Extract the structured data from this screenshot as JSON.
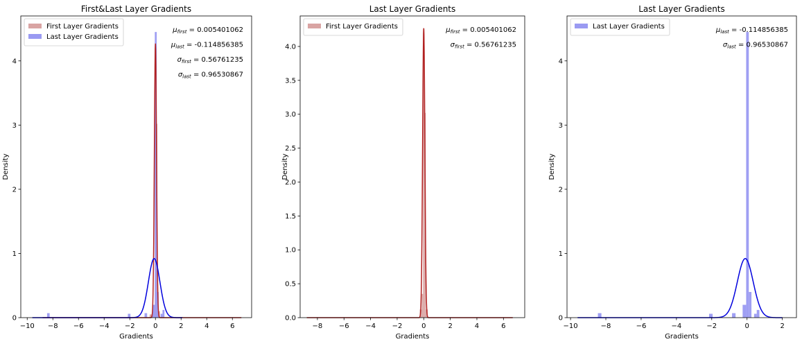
{
  "chart_data": [
    {
      "type": "histogram+kde",
      "title": "First&Last Layer Gradients",
      "xlabel": "Gradients",
      "ylabel": "Density",
      "xlim": [
        -10.5,
        7.5
      ],
      "ylim": [
        0,
        4.7
      ],
      "xticks": [
        -10,
        -8,
        -6,
        -4,
        -2,
        0,
        2,
        4,
        6
      ],
      "yticks": [
        0,
        1,
        2,
        3,
        4
      ],
      "legend_position": "upper-left",
      "legend": [
        {
          "label": "First Layer Gradients",
          "color": "#d9a4a3"
        },
        {
          "label": "Last Layer Gradients",
          "color": "#9a9af2"
        }
      ],
      "annotations": [
        {
          "sym": "μ",
          "sub": "first",
          "value": " = 0.005401062"
        },
        {
          "sym": "μ",
          "sub": "last",
          "value": " = -0.114856385"
        },
        {
          "sym": "σ",
          "sub": "first",
          "value": " = 0.56761235"
        },
        {
          "sym": "σ",
          "sub": "last",
          "value": " = 0.96530867"
        }
      ],
      "series": [
        {
          "name": "First Layer Gradients",
          "bar_color": "#d9a4a3",
          "line_color": "#b22222",
          "bins": [
            {
              "x0": -0.45,
              "x1": -0.2,
              "y": 0.05
            },
            {
              "x0": -0.2,
              "x1": -0.05,
              "y": 0.2
            },
            {
              "x0": -0.05,
              "x1": 0.05,
              "y": 4.25
            },
            {
              "x0": 0.05,
              "x1": 0.15,
              "y": 3.02
            },
            {
              "x0": 0.15,
              "x1": 0.35,
              "y": 0.1
            }
          ],
          "kde": {
            "mu": 0.0,
            "sigma": 0.085,
            "peak": 4.27
          }
        },
        {
          "name": "Last Layer Gradients",
          "bar_color": "#9a9af2",
          "line_color": "#0000dd",
          "bins": [
            {
              "x0": -8.45,
              "x1": -8.25,
              "y": 0.07
            },
            {
              "x0": -2.15,
              "x1": -1.95,
              "y": 0.06
            },
            {
              "x0": -0.85,
              "x1": -0.65,
              "y": 0.07
            },
            {
              "x0": -0.25,
              "x1": -0.05,
              "y": 0.2
            },
            {
              "x0": -0.05,
              "x1": 0.1,
              "y": 4.45
            },
            {
              "x0": 0.1,
              "x1": 0.25,
              "y": 0.4
            },
            {
              "x0": 0.4,
              "x1": 0.55,
              "y": 0.06
            },
            {
              "x0": 0.55,
              "x1": 0.7,
              "y": 0.12
            }
          ],
          "kde": {
            "mu": -0.1,
            "sigma": 0.45,
            "peak": 0.92
          },
          "kde_extent": [
            -9.6,
            2.1
          ]
        }
      ],
      "first_kde_extent": [
        -8.8,
        6.7
      ]
    },
    {
      "type": "histogram+kde",
      "title": "Last Layer Gradients",
      "xlabel": "Gradients",
      "ylabel": "Density",
      "xlim": [
        -9.3,
        7.6
      ],
      "ylim": [
        0,
        4.45
      ],
      "xticks": [
        -8,
        -6,
        -4,
        -2,
        0,
        2,
        4,
        6
      ],
      "yticks": [
        0,
        0.5,
        1.0,
        1.5,
        2.0,
        2.5,
        3.0,
        3.5,
        4.0
      ],
      "ytick_labels": [
        "0.0",
        "0.5",
        "1.0",
        "1.5",
        "2.0",
        "2.5",
        "3.0",
        "3.5",
        "4.0"
      ],
      "legend_position": "upper-left",
      "legend": [
        {
          "label": "First Layer Gradients",
          "color": "#d9a4a3"
        }
      ],
      "annotations": [
        {
          "sym": "μ",
          "sub": "first",
          "value": " = 0.005401062"
        },
        {
          "sym": "σ",
          "sub": "first",
          "value": " = 0.56761235"
        }
      ],
      "series": [
        {
          "name": "First Layer Gradients",
          "bar_color": "#d9a4a3",
          "line_color": "#b22222",
          "bins": [
            {
              "x0": -0.3,
              "x1": -0.15,
              "y": 0.12
            },
            {
              "x0": -0.15,
              "x1": -0.05,
              "y": 0.35
            },
            {
              "x0": -0.05,
              "x1": 0.05,
              "y": 4.26
            },
            {
              "x0": 0.05,
              "x1": 0.15,
              "y": 3.02
            },
            {
              "x0": 0.15,
              "x1": 0.3,
              "y": 0.12
            }
          ],
          "kde": {
            "mu": 0.0,
            "sigma": 0.085,
            "peak": 4.27
          },
          "kde_extent": [
            -8.8,
            6.7
          ]
        }
      ]
    },
    {
      "type": "histogram+kde",
      "title": "Last Layer Gradients",
      "xlabel": "Gradients",
      "ylabel": "Density",
      "xlim": [
        -10.2,
        2.8
      ],
      "ylim": [
        0,
        4.7
      ],
      "xticks": [
        -10,
        -8,
        -6,
        -4,
        -2,
        0,
        2
      ],
      "yticks": [
        0,
        1,
        2,
        3,
        4
      ],
      "legend_position": "upper-left",
      "legend": [
        {
          "label": "Last Layer Gradients",
          "color": "#9a9af2"
        }
      ],
      "annotations": [
        {
          "sym": "μ",
          "sub": "last",
          "value": " = -0.114856385"
        },
        {
          "sym": "σ",
          "sub": "last",
          "value": " = 0.96530867"
        }
      ],
      "series": [
        {
          "name": "Last Layer Gradients",
          "bar_color": "#9a9af2",
          "line_color": "#0000dd",
          "bins": [
            {
              "x0": -8.45,
              "x1": -8.25,
              "y": 0.07
            },
            {
              "x0": -2.15,
              "x1": -1.95,
              "y": 0.06
            },
            {
              "x0": -0.85,
              "x1": -0.65,
              "y": 0.07
            },
            {
              "x0": -0.25,
              "x1": -0.05,
              "y": 0.2
            },
            {
              "x0": -0.05,
              "x1": 0.1,
              "y": 4.45
            },
            {
              "x0": 0.1,
              "x1": 0.25,
              "y": 0.4
            },
            {
              "x0": 0.4,
              "x1": 0.55,
              "y": 0.06
            },
            {
              "x0": 0.55,
              "x1": 0.7,
              "y": 0.12
            }
          ],
          "kde": {
            "mu": -0.1,
            "sigma": 0.45,
            "peak": 0.92
          },
          "kde_extent": [
            -9.6,
            2.0
          ]
        }
      ]
    }
  ]
}
